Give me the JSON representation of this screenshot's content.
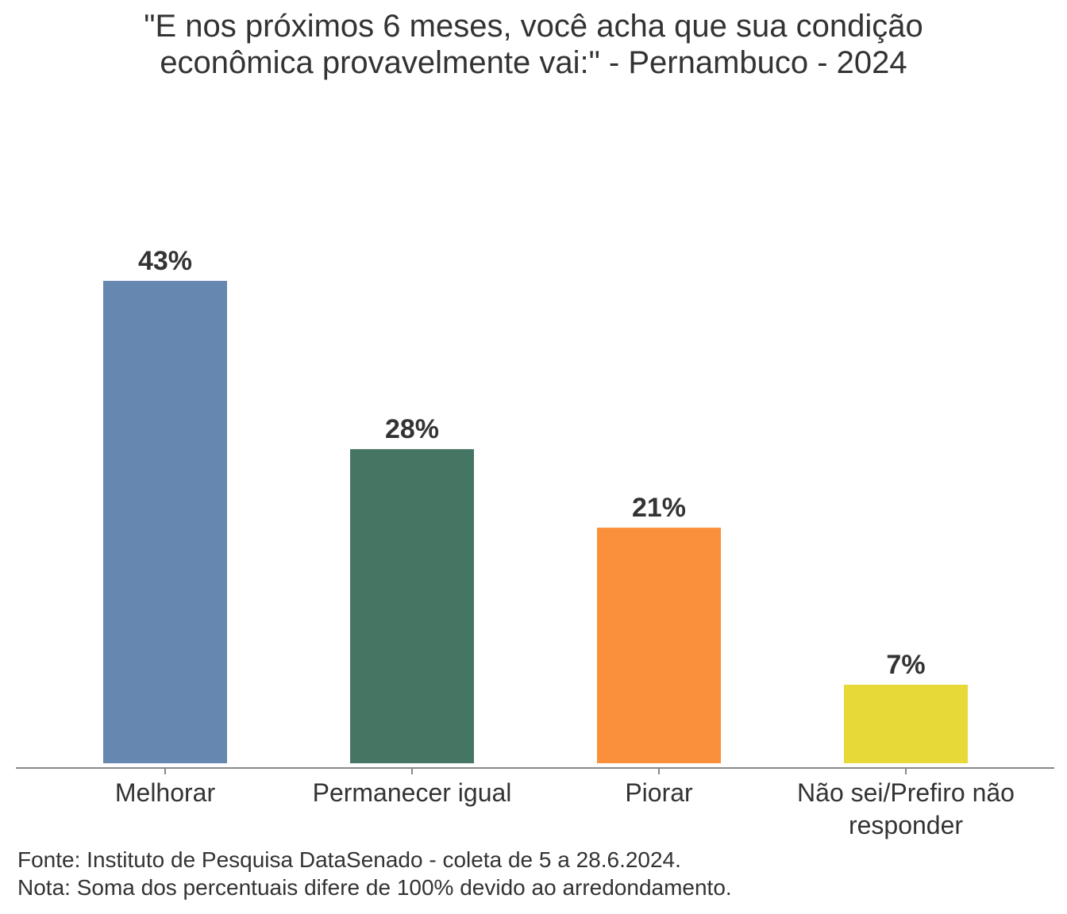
{
  "chart_data": {
    "type": "bar",
    "title_lines": [
      "\"E nos próximos 6 meses, você acha que sua condição",
      "econômica provavelmente vai:\" - Pernambuco - 2024"
    ],
    "categories": [
      [
        "Melhorar"
      ],
      [
        "Permanecer igual"
      ],
      [
        "Piorar"
      ],
      [
        "Não sei/Prefiro não",
        "responder"
      ]
    ],
    "values": [
      43,
      28,
      21,
      7
    ],
    "data_labels": [
      "43%",
      "28%",
      "21%",
      "7%"
    ],
    "colors": [
      "#6688b0",
      "#457563",
      "#fb903c",
      "#e6d938"
    ],
    "xlabel": "",
    "ylabel": "",
    "ylim": [
      0,
      43
    ],
    "grid": false
  },
  "footer": {
    "source": "Fonte: Instituto de Pesquisa DataSenado - coleta de 5 a 28.6.2024.",
    "note": "Nota: Soma dos percentuais difere de 100% devido ao arredondamento."
  }
}
